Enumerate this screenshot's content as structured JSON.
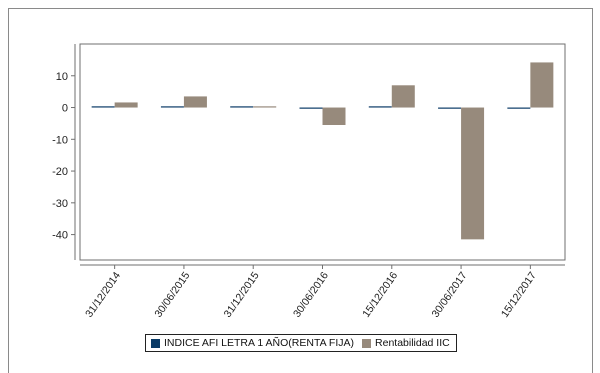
{
  "chart_data": {
    "type": "bar",
    "categories": [
      "31/12/2014",
      "30/06/2015",
      "31/12/2015",
      "30/06/2016",
      "15/12/2016",
      "30/06/2017",
      "15/12/2017"
    ],
    "series": [
      {
        "name": "INDICE AFI LETRA 1 AÑO(RENTA FIJA)",
        "color": "#0a3a66",
        "values": [
          0.3,
          0.2,
          0.1,
          -0.1,
          0.1,
          -0.2,
          -0.3
        ]
      },
      {
        "name": "Rentabilidad IIC",
        "color": "#978a7c",
        "values": [
          1.6,
          3.5,
          0.0,
          -5.5,
          7.0,
          -41.5,
          14.2
        ]
      }
    ],
    "yticks": [
      10,
      0,
      -10,
      -20,
      -30,
      -40
    ],
    "ylim": [
      -48,
      20
    ],
    "grid": false,
    "legend_position": "bottom"
  }
}
